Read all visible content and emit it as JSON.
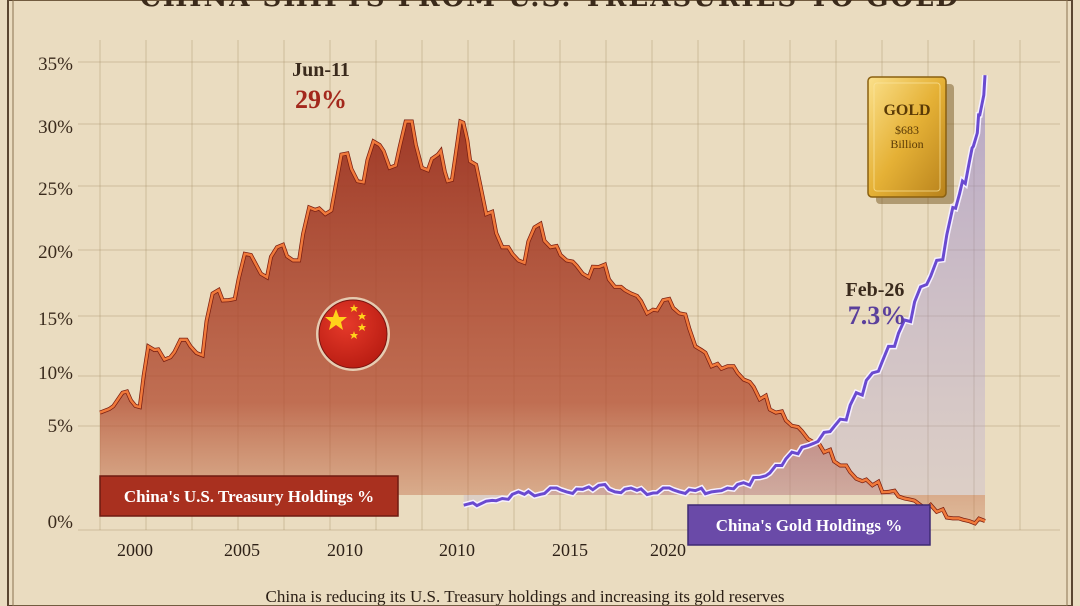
{
  "title": "CHINA SHIFTS FROM U.S. TREASURIES TO GOLD",
  "caption": "China is reducing its U.S. Treasury holdings and increasing its gold reserves",
  "colors": {
    "background": "#eadcc0",
    "treasury_fill": "#a83a24",
    "treasury_line": "#f07a3c",
    "gold_line": "#6a4ad0",
    "label_red": "#a9301f",
    "label_purple": "#6a4aa8",
    "gold_bar": "#e6b23a"
  },
  "chart_data": {
    "type": "area",
    "y_tick_labels": [
      "0%",
      "5%",
      "10%",
      "15%",
      "20%",
      "25%",
      "30%",
      "35%"
    ],
    "y_tick_values": [
      0,
      5,
      10,
      15,
      20,
      25,
      30,
      35
    ],
    "ylim": [
      0,
      35
    ],
    "x_tick_labels": [
      "2000",
      "2005",
      "2010",
      "2010",
      "2015",
      "2020"
    ],
    "series": [
      {
        "name": "China's U.S. Treasury Holdings %",
        "x": [
          1998.5,
          1999.2,
          1999.6,
          2000.0,
          2000.5,
          2001.0,
          2001.5,
          2002.0,
          2002.5,
          2003.0,
          2003.5,
          2004.0,
          2004.5,
          2005.0,
          2005.5,
          2006.0,
          2006.5,
          2007.0,
          2007.5,
          2008.0,
          2008.5,
          2009.0,
          2009.3,
          2009.7,
          2010.0,
          2010.5,
          2011.0,
          2011.5,
          2012.0,
          2012.5,
          2013.0,
          2013.5,
          2014.0,
          2014.5,
          2015.0,
          2015.5,
          2016.0,
          2016.5,
          2017.0,
          2017.5,
          2018.0,
          2018.5,
          2019.0,
          2019.5,
          2020.0,
          2020.5,
          2021.0,
          2021.5,
          2022.0,
          2022.5,
          2023.0,
          2023.5,
          2024.0,
          2024.5,
          2025.0,
          2025.5,
          2026.0
        ],
        "values": [
          8.5,
          10.0,
          9.0,
          13.5,
          12.5,
          14.0,
          13.0,
          17.5,
          17.0,
          20.5,
          19.0,
          21.0,
          20.0,
          24.0,
          23.5,
          28.0,
          26.0,
          29.0,
          27.0,
          30.5,
          27.0,
          28.0,
          26.0,
          30.5,
          27.5,
          23.5,
          21.0,
          20.0,
          22.5,
          21.0,
          20.0,
          19.0,
          19.5,
          18.0,
          17.5,
          16.0,
          17.0,
          16.0,
          13.5,
          12.0,
          12.0,
          11.0,
          9.5,
          8.5,
          7.5,
          6.5,
          5.5,
          4.5,
          3.5,
          3.0,
          2.5,
          2.0,
          1.5,
          1.0,
          0.5,
          0.3,
          0.3
        ]
      },
      {
        "name": "China's Gold Holdings %",
        "x": [
          2009.8,
          2010.5,
          2011.0,
          2011.5,
          2012.0,
          2012.5,
          2013.0,
          2013.5,
          2014.0,
          2014.5,
          2015.0,
          2015.5,
          2016.0,
          2016.5,
          2017.0,
          2017.5,
          2018.0,
          2018.5,
          2019.0,
          2019.5,
          2020.0,
          2020.5,
          2021.0,
          2021.5,
          2022.0,
          2022.5,
          2023.0,
          2023.5,
          2024.0,
          2024.5,
          2025.0,
          2025.3,
          2025.6,
          2025.8,
          2026.0
        ],
        "values": [
          1.5,
          1.8,
          2.0,
          2.5,
          2.2,
          2.8,
          2.5,
          2.7,
          3.0,
          2.5,
          2.8,
          2.3,
          2.8,
          2.5,
          2.6,
          2.5,
          2.8,
          3.2,
          3.6,
          4.5,
          5.5,
          6.0,
          7.0,
          8.0,
          10.0,
          11.5,
          13.5,
          15.5,
          18.0,
          20.0,
          24.0,
          26.0,
          28.5,
          31.0,
          34.0
        ]
      }
    ],
    "annotations": [
      {
        "date": "Jun-11",
        "value": "29%",
        "x": 2008.7,
        "y": 30.5
      },
      {
        "date": "Feb-26",
        "value": "7.3%",
        "x": 2024.2,
        "y": 14.5
      }
    ],
    "gold_bar": {
      "label": "GOLD",
      "amount": "$683",
      "unit": "Billion"
    },
    "grid": true
  }
}
